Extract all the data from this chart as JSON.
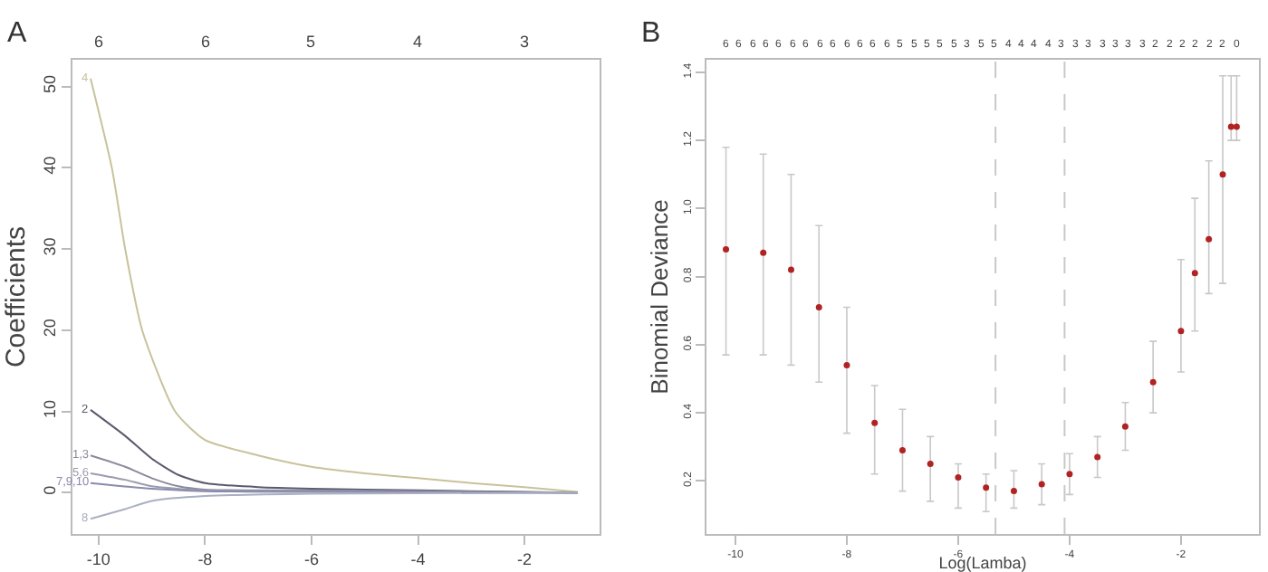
{
  "chart_data": [
    {
      "type": "line",
      "title": "A",
      "ylabel": "Coefficients",
      "xlim": [
        -10.49,
        -0.59
      ],
      "ylim": [
        -5.07,
        53.3
      ],
      "xticks": [
        -10,
        -8,
        -6,
        -4,
        -2
      ],
      "yticks": [
        0,
        10,
        20,
        30,
        40,
        50
      ],
      "annotations": [
        "6",
        "6",
        "5",
        "4",
        "3"
      ],
      "line_style": "solid",
      "series": [
        {
          "name": "4",
          "color": "#c9c29c",
          "x": [
            -10.15,
            -9.75,
            -9.5,
            -9.18,
            -8.56,
            -8,
            -7,
            -6,
            -5,
            -4,
            -3,
            -2,
            -1
          ],
          "values": [
            51,
            40,
            30,
            20,
            10,
            6.5,
            4.6,
            3.2,
            2.4,
            1.8,
            1.2,
            0.7,
            0.1
          ]
        },
        {
          "name": "2",
          "color": "#5a5a6e",
          "x": [
            -10.15,
            -9.5,
            -9,
            -8.5,
            -8,
            -7,
            -6,
            -4,
            -2,
            -1
          ],
          "values": [
            10.2,
            7,
            4.2,
            2.2,
            1.2,
            0.7,
            0.5,
            0.3,
            0.1,
            0
          ]
        },
        {
          "name": "1,3",
          "color": "#8a8a9c",
          "x": [
            -10.15,
            -9.5,
            -9,
            -8.5,
            -8,
            -6,
            -4,
            -1
          ],
          "values": [
            4.6,
            3.2,
            1.8,
            0.8,
            0.4,
            0.3,
            0.2,
            0
          ]
        },
        {
          "name": "5,6",
          "color": "#9c9cae",
          "x": [
            -10.15,
            -9.5,
            -9,
            -8,
            -6,
            -1
          ],
          "values": [
            2.4,
            1.6,
            0.8,
            0.3,
            0.2,
            0
          ]
        },
        {
          "name": "7,9,10",
          "color": "#8a8aae",
          "x": [
            -10.15,
            -9,
            -8,
            -6,
            -1
          ],
          "values": [
            1.2,
            0.5,
            0.2,
            0.1,
            0
          ]
        },
        {
          "name": "8",
          "color": "#aab0c2",
          "x": [
            -10.15,
            -9.5,
            -9,
            -8,
            -6,
            -1
          ],
          "values": [
            -3.2,
            -2,
            -1,
            -0.4,
            -0.1,
            0
          ]
        }
      ]
    },
    {
      "type": "scatter",
      "title": "B",
      "xlabel": "Log(Lamba)",
      "ylabel": "Binomial Deviance",
      "xlim": [
        -10.52,
        -0.6
      ],
      "ylim": [
        0.044,
        1.437
      ],
      "xticks": [
        -10,
        -8,
        -6,
        -4,
        -2
      ],
      "yticks": [
        {
          "value": 0.2,
          "label": "0.2"
        },
        {
          "value": 0.4,
          "label": "0.4"
        },
        {
          "value": 0.6,
          "label": "0.6"
        },
        {
          "value": 0.8,
          "label": "0.8"
        },
        {
          "value": 1,
          "label": "1.0"
        },
        {
          "value": 1.2,
          "label": "1.2"
        },
        {
          "value": 1.4,
          "label": "1.4"
        }
      ],
      "annotations": [
        "6",
        "6",
        "6",
        "6",
        "6",
        "6",
        "6",
        "6",
        "6",
        "6",
        "6",
        "6",
        "6",
        "5",
        "5",
        "5",
        "5",
        "5",
        "3",
        "5",
        "5",
        "4",
        "4",
        "4",
        "4",
        "3",
        "3",
        "3",
        "3",
        "3",
        "3",
        "3",
        "2",
        "2",
        "2",
        "2",
        "2",
        "2",
        "0"
      ],
      "marker": "circle",
      "ref_lines": [
        {
          "axis": "x",
          "value": -5.33,
          "color": "#c8c8c8",
          "line_style": "dashed"
        },
        {
          "axis": "x",
          "value": -4.09,
          "color": "#c8c8c8",
          "line_style": "dashed"
        }
      ],
      "x": [
        -10.17,
        -9.5,
        -9,
        -8.5,
        -8,
        -7.5,
        -7,
        -6.5,
        -6,
        -5.5,
        -5,
        -4.5,
        -4,
        -3.5,
        -3,
        -2.5,
        -2,
        -1.75,
        -1.5,
        -1.25,
        -1.1,
        -1
      ],
      "series": [
        {
          "color": "#b22222",
          "values": [
            0.88,
            0.87,
            0.82,
            0.71,
            0.54,
            0.37,
            0.29,
            0.25,
            0.21,
            0.18,
            0.17,
            0.19,
            0.22,
            0.27,
            0.36,
            0.49,
            0.64,
            0.81,
            0.91,
            1.1,
            1.24,
            1.24
          ],
          "errors": [
            [
              0.57,
              1.18
            ],
            [
              0.57,
              1.16
            ],
            [
              0.54,
              1.1
            ],
            [
              0.49,
              0.95
            ],
            [
              0.34,
              0.71
            ],
            [
              0.22,
              0.48
            ],
            [
              0.17,
              0.41
            ],
            [
              0.14,
              0.33
            ],
            [
              0.12,
              0.25
            ],
            [
              0.11,
              0.22
            ],
            [
              0.12,
              0.23
            ],
            [
              0.13,
              0.25
            ],
            [
              0.16,
              0.28
            ],
            [
              0.21,
              0.33
            ],
            [
              0.29,
              0.43
            ],
            [
              0.4,
              0.61
            ],
            [
              0.52,
              0.85
            ],
            [
              0.64,
              1.03
            ],
            [
              0.75,
              1.14
            ],
            [
              0.78,
              1.39
            ],
            [
              1.2,
              1.39
            ],
            [
              1.2,
              1.39
            ]
          ]
        }
      ]
    }
  ]
}
